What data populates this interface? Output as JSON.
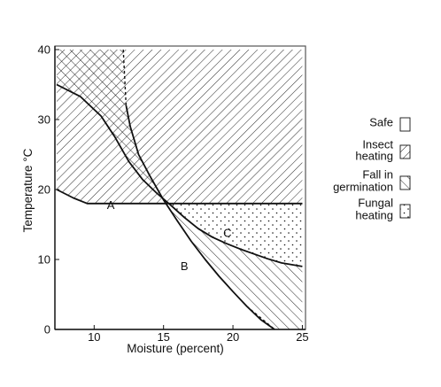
{
  "chart_data": {
    "type": "area",
    "title": "",
    "xlabel": "Moisture (percent)",
    "ylabel": "Temperature °C",
    "xlim": [
      7,
      25.5
    ],
    "ylim": [
      0,
      40
    ],
    "x_ticks": [
      10,
      15,
      20,
      25
    ],
    "y_ticks": [
      0,
      10,
      20,
      30,
      40
    ],
    "grid": false,
    "legend_position": "right",
    "legend": [
      {
        "key": "safe",
        "label": "Safe",
        "pattern": "none"
      },
      {
        "key": "insect",
        "label": "Insect heating",
        "pattern": "hatch-down-right"
      },
      {
        "key": "germination",
        "label": "Fall in germination",
        "pattern": "hatch-up-right"
      },
      {
        "key": "fungal",
        "label": "Fungal heating",
        "pattern": "dots"
      }
    ],
    "curves": [
      {
        "label": "A",
        "label_at": [
          11.2,
          17.2
        ],
        "style": "solid",
        "points": [
          [
            7.3,
            20
          ],
          [
            8.5,
            18.8
          ],
          [
            9.5,
            18
          ],
          [
            11,
            18
          ],
          [
            14.5,
            18
          ],
          [
            20,
            18
          ],
          [
            25,
            18
          ]
        ]
      },
      {
        "label": "B",
        "label_at": [
          16.5,
          8.5
        ],
        "style": "solid",
        "points": [
          [
            12.3,
            32
          ],
          [
            12.6,
            29
          ],
          [
            13.2,
            25
          ],
          [
            14,
            22
          ],
          [
            15,
            18.5
          ],
          [
            16,
            15.5
          ],
          [
            17,
            12.6
          ],
          [
            18,
            10
          ],
          [
            19,
            7.6
          ],
          [
            20,
            5.4
          ],
          [
            21,
            3.3
          ],
          [
            22,
            1.4
          ],
          [
            23,
            0
          ]
        ]
      },
      {
        "label": "C",
        "label_at": [
          19.6,
          13.2
        ],
        "style": "solid",
        "points": [
          [
            7.3,
            35
          ],
          [
            9,
            33.3
          ],
          [
            10.5,
            30.5
          ],
          [
            11.5,
            27.5
          ],
          [
            12.5,
            24
          ],
          [
            13.5,
            21.4
          ],
          [
            14.5,
            19.5
          ],
          [
            15.5,
            17.8
          ],
          [
            16.5,
            16
          ],
          [
            17.5,
            14.4
          ],
          [
            18.5,
            13.2
          ],
          [
            19.5,
            12.3
          ],
          [
            20.5,
            11.5
          ],
          [
            21.5,
            10.8
          ],
          [
            22.5,
            10.1
          ],
          [
            23.5,
            9.5
          ],
          [
            25,
            9.0
          ]
        ]
      }
    ],
    "regions": [
      {
        "key": "insect",
        "points": [
          [
            7.3,
            40
          ],
          [
            25,
            40
          ],
          [
            25,
            18
          ],
          [
            9.5,
            18
          ],
          [
            7.3,
            20
          ]
        ]
      },
      {
        "key": "germination",
        "points": [
          [
            7.3,
            35
          ],
          [
            9,
            33.3
          ],
          [
            10.5,
            30.5
          ],
          [
            11.5,
            27.5
          ],
          [
            12.5,
            24
          ],
          [
            13.5,
            21.4
          ],
          [
            14.5,
            19.5
          ],
          [
            15.5,
            17.8
          ],
          [
            16.5,
            16
          ],
          [
            17.5,
            14.4
          ],
          [
            18.5,
            13.2
          ],
          [
            19.5,
            12.3
          ],
          [
            20.5,
            11.5
          ],
          [
            21.5,
            10.8
          ],
          [
            22.5,
            10.1
          ],
          [
            23.5,
            9.5
          ],
          [
            25,
            9.0
          ],
          [
            25,
            0
          ],
          [
            23,
            0
          ],
          [
            22,
            1.4
          ],
          [
            21,
            3.3
          ],
          [
            20,
            5.4
          ],
          [
            19,
            7.6
          ],
          [
            18,
            10
          ],
          [
            17,
            12.6
          ],
          [
            16,
            15.5
          ],
          [
            15,
            18.5
          ],
          [
            14,
            22
          ],
          [
            13.2,
            25
          ],
          [
            12.6,
            29
          ],
          [
            12.3,
            32
          ],
          [
            12.1,
            40
          ],
          [
            7.3,
            40
          ]
        ]
      },
      {
        "key": "fungal",
        "points": [
          [
            14.5,
            18
          ],
          [
            25,
            18
          ],
          [
            25,
            9.0
          ],
          [
            23.5,
            9.5
          ],
          [
            22.5,
            10.1
          ],
          [
            21.5,
            10.8
          ],
          [
            20.5,
            11.5
          ],
          [
            19.5,
            12.3
          ],
          [
            18.5,
            13.2
          ],
          [
            17.5,
            14.4
          ],
          [
            16.5,
            16
          ],
          [
            15.5,
            17.8
          ]
        ]
      }
    ],
    "dashed_lines": [
      {
        "points": [
          [
            12.1,
            40
          ],
          [
            12.3,
            32
          ]
        ]
      },
      {
        "points": [
          [
            7.3,
            35
          ],
          [
            9,
            33.3
          ]
        ]
      },
      {
        "points": [
          [
            20,
            18
          ],
          [
            25,
            18
          ]
        ]
      },
      {
        "points": [
          [
            21,
            3.3
          ],
          [
            23,
            0
          ]
        ]
      }
    ],
    "colors": {
      "ink": "#111111",
      "background": "#ffffff",
      "plot_border": "#555555"
    }
  }
}
